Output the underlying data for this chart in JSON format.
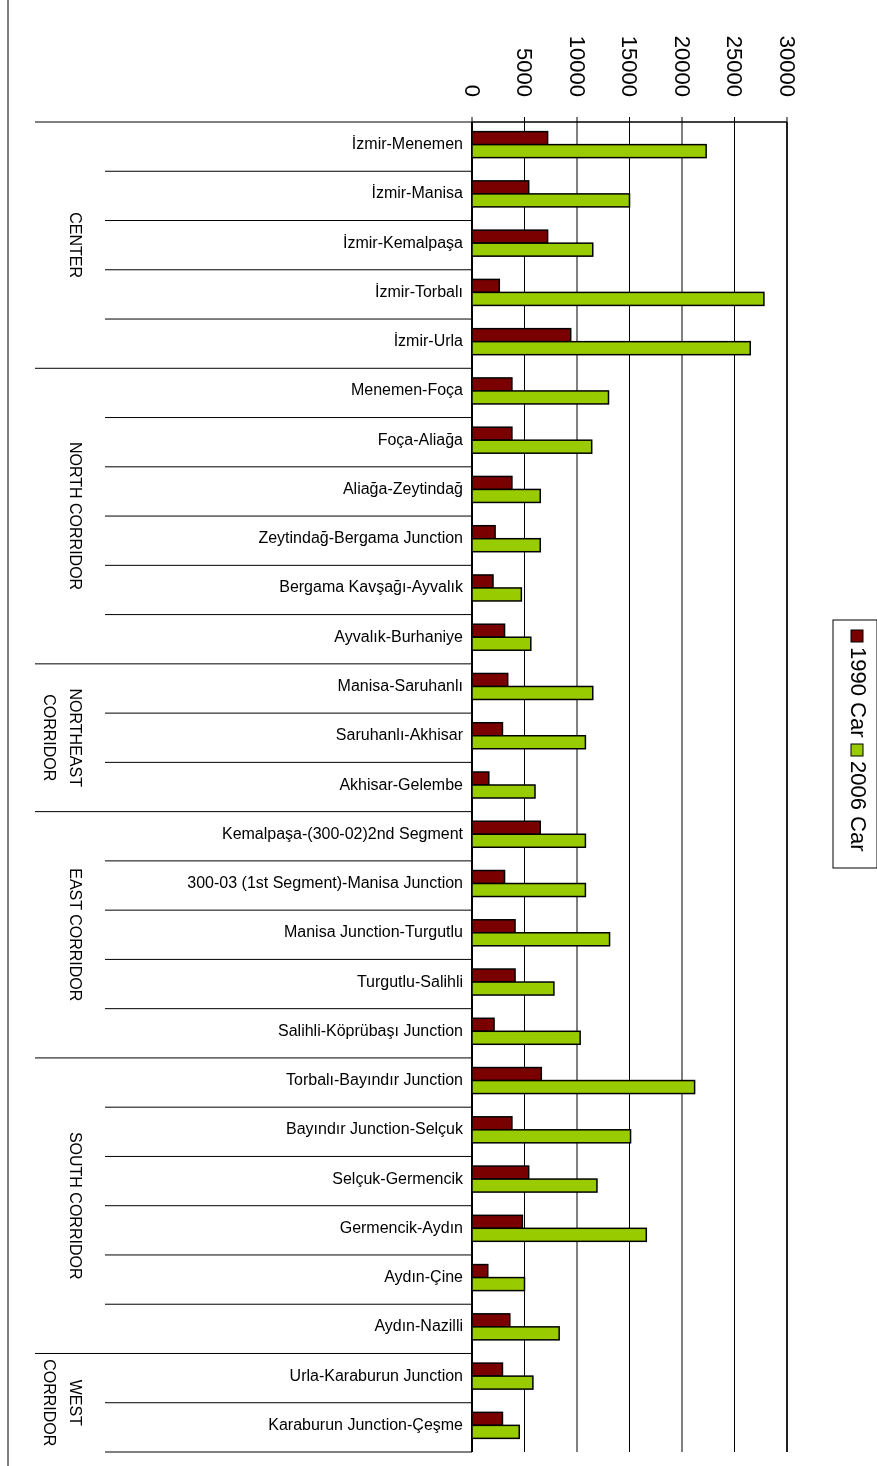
{
  "chart_data": {
    "type": "bar",
    "orientation": "horizontal",
    "categories": [
      "İzmir-Menemen",
      "İzmir-Manisa",
      "İzmir-Kemalpaşa",
      "İzmir-Torbalı",
      "İzmir-Urla",
      "Menemen-Foça",
      "Foça-Aliağa",
      "Aliağa-Zeytindağ",
      "Zeytindağ-Bergama Junction",
      "Bergama Kavşağı-Ayvalık",
      "Ayvalık-Burhaniye",
      "Manisa-Saruhanlı",
      "Saruhanlı-Akhisar",
      "Akhisar-Gelembe",
      "Kemalpaşa-(300-02)2nd Segment",
      "300-03 (1st Segment)-Manisa Junction",
      "Manisa Junction-Turgutlu",
      "Turgutlu-Salihli",
      "Salihli-Köprübaşı Junction",
      "Torbalı-Bayındır Junction",
      "Bayındır Junction-Selçuk",
      "Selçuk-Germencik",
      "Germencik-Aydın",
      "Aydın-Çine",
      "Aydın-Nazilli",
      "Urla-Karaburun Junction",
      "Karaburun Junction-Çeşme"
    ],
    "series": [
      {
        "name": "1990 Car",
        "color": "#7a0000",
        "values": [
          7200,
          5400,
          7200,
          2600,
          9400,
          3800,
          3800,
          3800,
          2200,
          2000,
          3100,
          3400,
          2900,
          1600,
          6500,
          3100,
          4100,
          4100,
          2100,
          6600,
          3800,
          5400,
          4800,
          1500,
          3600,
          2900,
          2900
        ]
      },
      {
        "name": "2006 Car",
        "color": "#99cc00",
        "values": [
          22300,
          15000,
          11500,
          27800,
          26500,
          13000,
          11400,
          6500,
          6500,
          4700,
          5600,
          11500,
          10800,
          6000,
          10800,
          10800,
          13100,
          7800,
          10300,
          21200,
          15100,
          11900,
          16600,
          5000,
          8300,
          5800,
          4500
        ]
      }
    ],
    "xlim": [
      0,
      30000
    ],
    "xticks": [
      0,
      5000,
      10000,
      15000,
      20000,
      25000,
      30000
    ],
    "grid": "x",
    "legend": "right",
    "annotations": [
      "CENTER",
      "NORTH CORRIDOR",
      "NORTHEAST CORRIDOR",
      "EAST CORRIDOR",
      "SOUTH CORRIDOR",
      "WEST CORRIDOR"
    ]
  }
}
